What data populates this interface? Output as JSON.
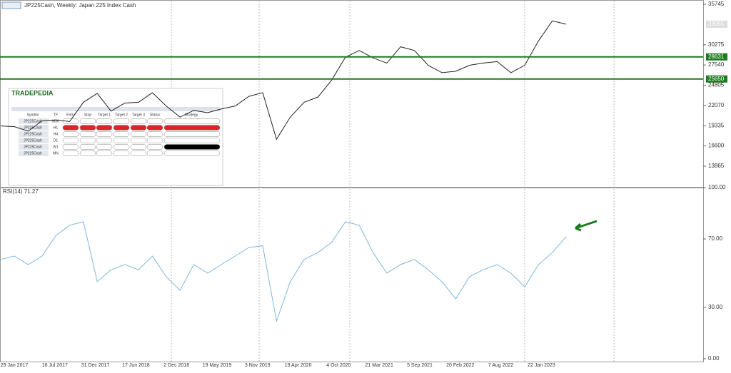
{
  "header": {
    "title": "JP225Cash, Weekly:  Japan 225 Index Cash"
  },
  "price_chart": {
    "type": "line",
    "color": "#222222",
    "values": [
      19300,
      19200,
      18600,
      20000,
      20100,
      19900,
      22500,
      23700,
      21300,
      22400,
      22500,
      23800,
      22000,
      20500,
      21400,
      21100,
      21600,
      22000,
      23300,
      23800,
      17500,
      20500,
      22500,
      23200,
      25500,
      28600,
      29500,
      28500,
      27800,
      30000,
      29500,
      27500,
      26500,
      26700,
      27500,
      27800,
      28000,
      26500,
      27500,
      30800,
      33500,
      33055
    ],
    "ylim": [
      11070,
      36323
    ],
    "yticks": [
      35745,
      30275,
      27540,
      24805,
      22070,
      19335,
      16600,
      13865
    ],
    "grid": false,
    "levels": [
      {
        "value": 28631,
        "color": "#1e7b1e"
      },
      {
        "value": 25650,
        "color": "#1e7b1e"
      }
    ],
    "current_price": 33055
  },
  "rsi_chart": {
    "type": "line",
    "title": "RSI(14) 71.27",
    "color": "#7fb6d9",
    "values": [
      58,
      60,
      55,
      60,
      72,
      78,
      80,
      45,
      52,
      55,
      52,
      60,
      48,
      40,
      55,
      50,
      55,
      60,
      65,
      66,
      22,
      45,
      58,
      62,
      68,
      80,
      78,
      62,
      50,
      55,
      58,
      52,
      45,
      35,
      48,
      52,
      55,
      50,
      42,
      55,
      62,
      71.27
    ],
    "ylim": [
      0,
      100
    ],
    "yticks": [
      {
        "value": 100,
        "label": "100.00"
      },
      {
        "value": 70,
        "label": "70.00"
      },
      {
        "value": 30,
        "label": "30.00"
      },
      {
        "value": 0,
        "label": "0.00"
      }
    ]
  },
  "x_labels": [
    "29 Jan 2017",
    "16 Jul 2017",
    "31 Dec 2017",
    "17 Jun 2018",
    "2 Dec 2018",
    "19 May 2019",
    "3 Nov 2019",
    "19 Apr 2020",
    "4 Oct 2020",
    "21 Mar 2021",
    "5 Sep 2021",
    "20 Feb 2022",
    "7 Aug 2022",
    "22 Jan 2023"
  ],
  "panel": {
    "brand": "TRADEPEDIA",
    "columns": [
      "Symbol",
      "TF",
      "Entry",
      "Stop",
      "Target 1",
      "Target 2",
      "Target 3",
      "Status",
      "Strategy"
    ],
    "rows": [
      [
        "JP225Cash",
        "M30"
      ],
      [
        "JP225Cash",
        "H1"
      ],
      [
        "JP225Cash",
        "H4"
      ],
      [
        "JP225Cash",
        "D1"
      ],
      [
        "JP225Cash",
        "W1"
      ],
      [
        "JP225Cash",
        "MN"
      ]
    ]
  }
}
